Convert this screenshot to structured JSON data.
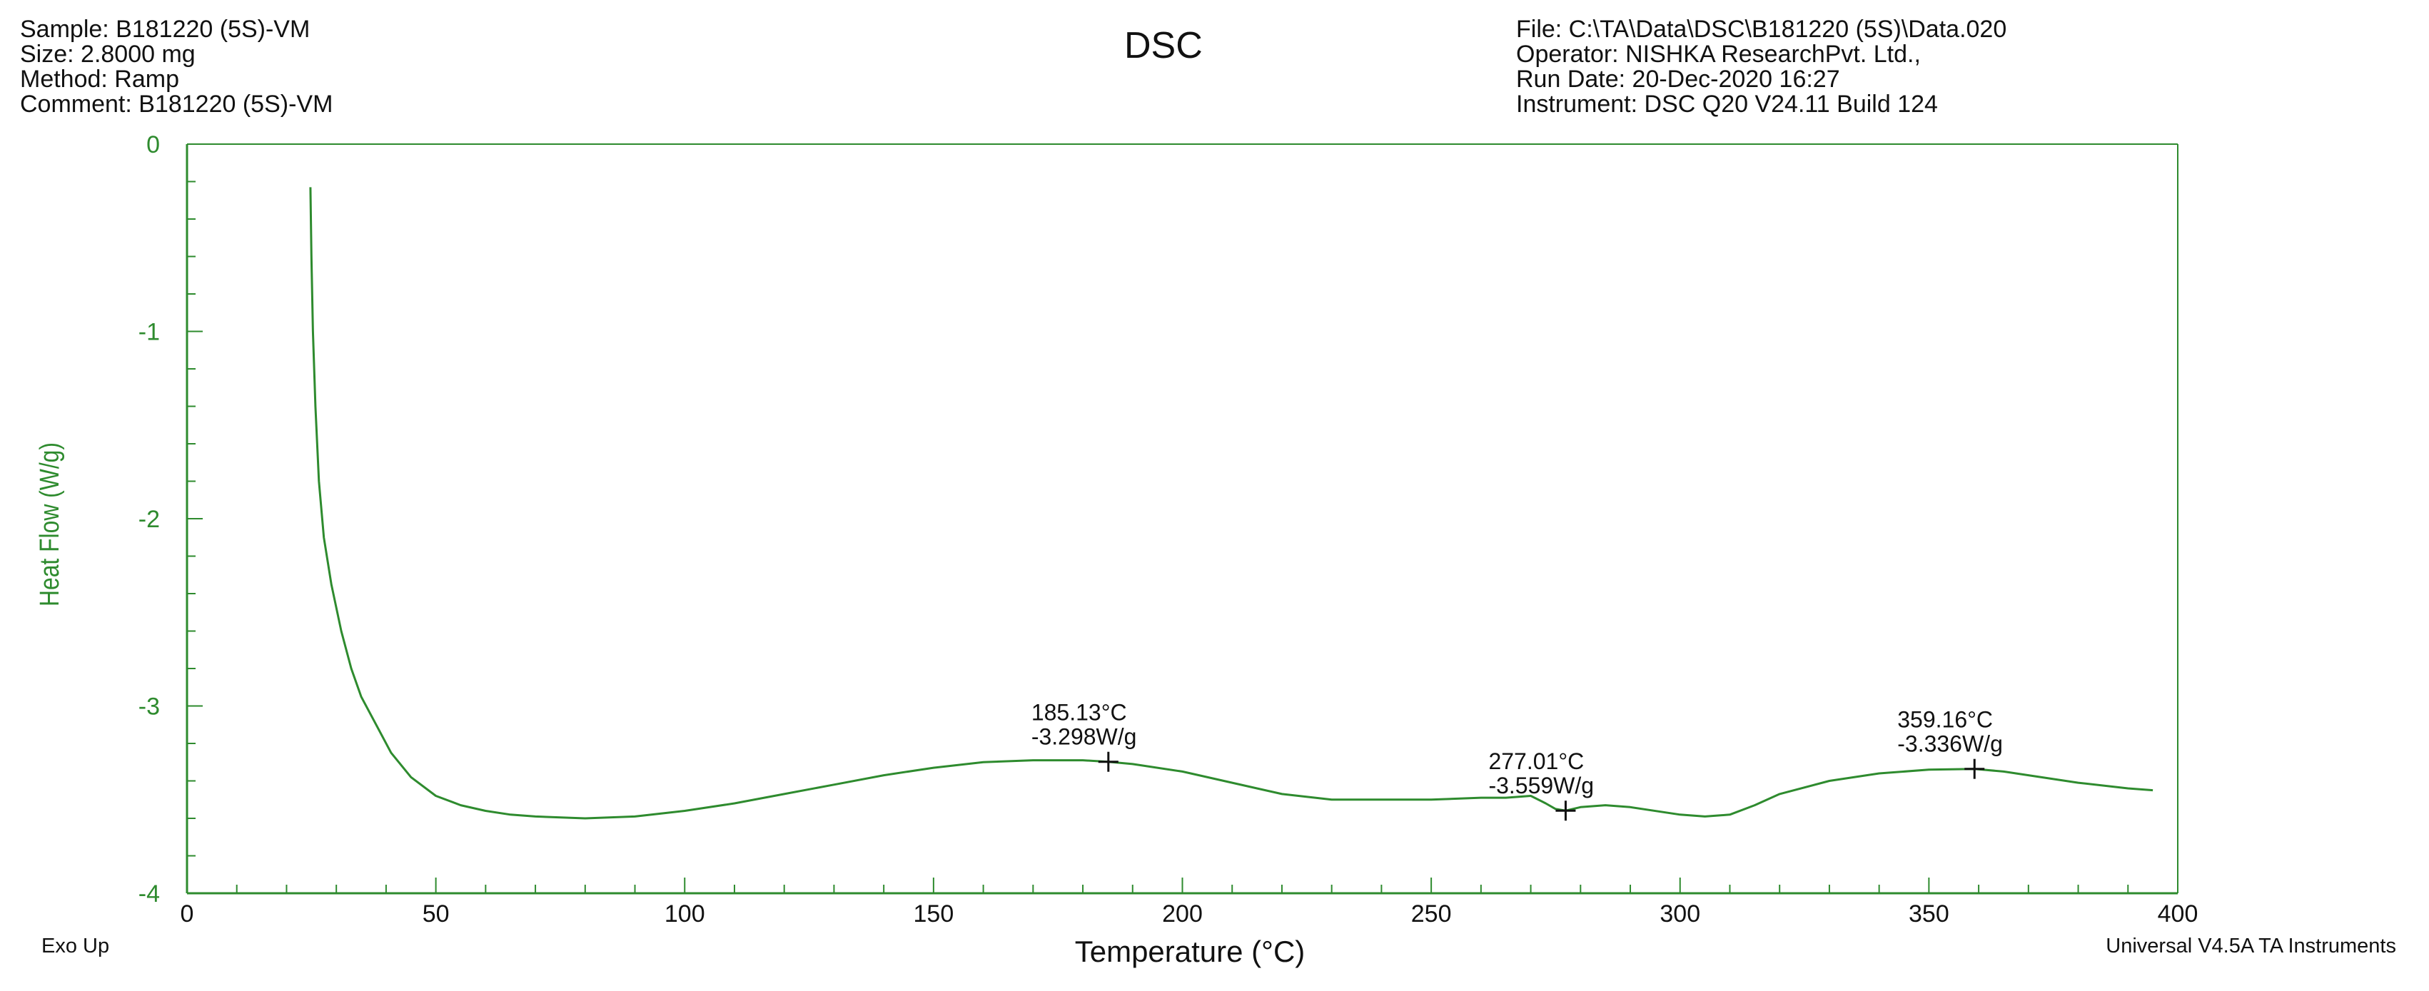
{
  "header": {
    "left": [
      "Sample: B181220 (5S)-VM",
      "Size:  2.8000 mg",
      "Method: Ramp",
      "Comment: B181220 (5S)-VM"
    ],
    "right": [
      "File: C:\\TA\\Data\\DSC\\B181220 (5S)\\Data.020",
      "Operator: NISHKA ResearchPvt. Ltd.,",
      "Run Date: 20-Dec-2020 16:27",
      "Instrument: DSC Q20 V24.11 Build 124"
    ]
  },
  "footer": {
    "left": "Exo Up",
    "right": "Universal V4.5A TA Instruments"
  },
  "colors": {
    "axis": "#2e8b2e",
    "curve": "#2e8b2e",
    "text": "#111111"
  },
  "chart_data": {
    "type": "line",
    "title": "DSC",
    "xlabel": "Temperature (°C)",
    "ylabel": "Heat Flow (W/g)",
    "xlim": [
      0,
      400
    ],
    "ylim": [
      -4,
      0
    ],
    "xticks": [
      0,
      50,
      100,
      150,
      200,
      250,
      300,
      350,
      400
    ],
    "yticks": [
      0,
      -1,
      -2,
      -3,
      -4
    ],
    "grid": false,
    "series": [
      {
        "x": [
          24.8,
          25.0,
          25.3,
          25.8,
          26.5,
          27.5,
          29.0,
          31.0,
          33.0,
          35.0,
          38.0,
          41.0,
          45.0,
          50.0,
          55.0,
          60.0,
          65.0,
          70.0,
          80.0,
          90.0,
          100.0,
          110.0,
          120.0,
          130.0,
          140.0,
          150.0,
          160.0,
          170.0,
          180.0,
          185.13,
          190.0,
          200.0,
          210.0,
          220.0,
          230.0,
          240.0,
          250.0,
          260.0,
          265.0,
          270.0,
          273.0,
          275.0,
          277.01,
          280.0,
          285.0,
          290.0,
          300.0,
          305.0,
          310.0,
          315.0,
          320.0,
          330.0,
          340.0,
          350.0,
          359.16,
          365.0,
          370.0,
          380.0,
          390.0,
          395.0
        ],
        "y": [
          -0.23,
          -0.6,
          -1.0,
          -1.4,
          -1.8,
          -2.1,
          -2.35,
          -2.6,
          -2.8,
          -2.95,
          -3.1,
          -3.25,
          -3.38,
          -3.48,
          -3.53,
          -3.56,
          -3.58,
          -3.59,
          -3.6,
          -3.59,
          -3.56,
          -3.52,
          -3.47,
          -3.42,
          -3.37,
          -3.33,
          -3.3,
          -3.29,
          -3.29,
          -3.298,
          -3.31,
          -3.35,
          -3.41,
          -3.47,
          -3.5,
          -3.5,
          -3.5,
          -3.49,
          -3.49,
          -3.48,
          -3.52,
          -3.55,
          -3.559,
          -3.54,
          -3.53,
          -3.54,
          -3.58,
          -3.59,
          -3.58,
          -3.53,
          -3.47,
          -3.4,
          -3.36,
          -3.34,
          -3.336,
          -3.35,
          -3.37,
          -3.41,
          -3.44,
          -3.45
        ]
      }
    ],
    "annotations": [
      {
        "x": 185.13,
        "y": -3.298,
        "temp_label": "185.13°C",
        "value_label": "-3.298W/g"
      },
      {
        "x": 277.01,
        "y": -3.559,
        "temp_label": "277.01°C",
        "value_label": "-3.559W/g"
      },
      {
        "x": 359.16,
        "y": -3.336,
        "temp_label": "359.16°C",
        "value_label": "-3.336W/g"
      }
    ]
  }
}
